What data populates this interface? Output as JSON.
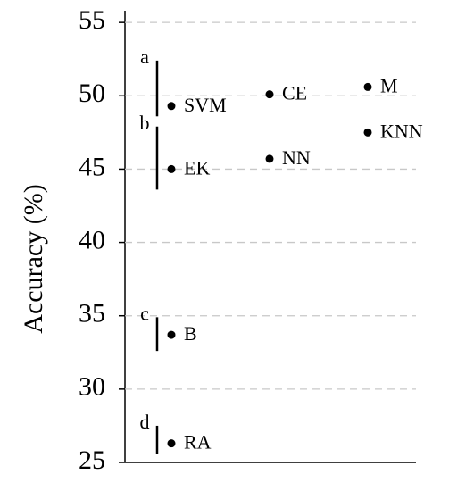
{
  "chart_data": {
    "type": "scatter",
    "y_label": "Accuracy (%)",
    "ylim": [
      25,
      55.8
    ],
    "yticks": [
      25,
      30,
      35,
      40,
      45,
      50,
      55
    ],
    "grid": true,
    "color": "#000000",
    "columns": [
      [
        {
          "label": "SVM",
          "value": 49.3
        },
        {
          "label": "EK",
          "value": 45.0
        },
        {
          "label": "B",
          "value": 33.7
        },
        {
          "label": "RA",
          "value": 26.3
        }
      ],
      [
        {
          "label": "CE",
          "value": 50.1
        },
        {
          "label": "NN",
          "value": 45.7
        }
      ],
      [
        {
          "label": "M",
          "value": 50.6
        },
        {
          "label": "KNN",
          "value": 47.5
        }
      ]
    ],
    "groups": [
      {
        "label": "a",
        "range": [
          52.4,
          48.6
        ]
      },
      {
        "label": "b",
        "range": [
          47.9,
          43.6
        ]
      },
      {
        "label": "c",
        "range": [
          34.9,
          32.6
        ]
      },
      {
        "label": "d",
        "range": [
          27.5,
          25.6
        ]
      }
    ]
  }
}
